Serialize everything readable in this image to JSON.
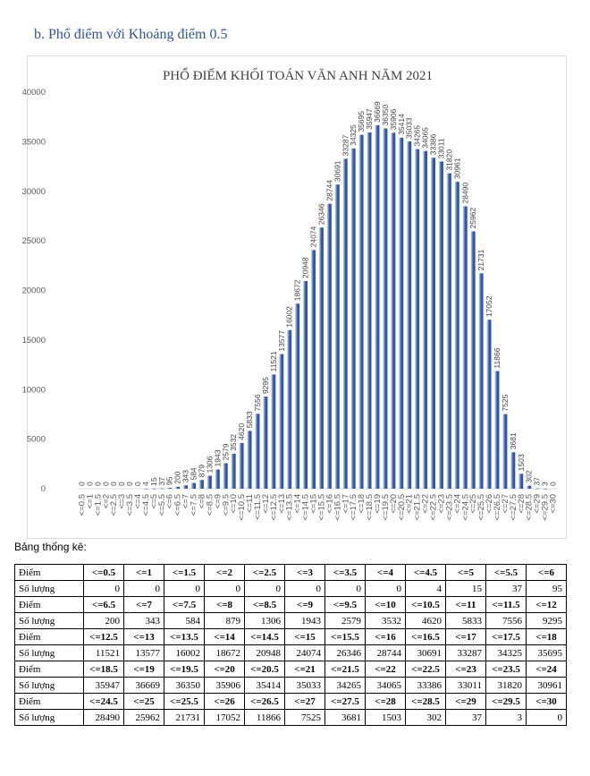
{
  "heading": "b.  Phổ điểm với Khoảng điểm 0.5",
  "table_caption": "Bảng thống kê:",
  "chart_data": {
    "type": "bar",
    "title": "PHỔ ĐIỂM KHỐI TOÁN VĂN ANH  NĂM 2021",
    "ylim": [
      0,
      40000
    ],
    "yticks": [
      0,
      5000,
      10000,
      15000,
      20000,
      25000,
      30000,
      35000,
      40000
    ],
    "categories": [
      "<=0.5",
      "<=1",
      "<=1.5",
      "<=2",
      "<=2.5",
      "<=3",
      "<=3.5",
      "<=4",
      "<=4.5",
      "<=5",
      "<=5.5",
      "<=6",
      "<=6.5",
      "<=7",
      "<=7.5",
      "<=8",
      "<=8.5",
      "<=9",
      "<=9.5",
      "<=10",
      "<=10.5",
      "<=11",
      "<=11.5",
      "<=12",
      "<=12.5",
      "<=13",
      "<=13.5",
      "<=14",
      "<=14.5",
      "<=15",
      "<=15.5",
      "<=16",
      "<=16.5",
      "<=17",
      "<=17.5",
      "<=18",
      "<=18.5",
      "<=19",
      "<=19.5",
      "<=20",
      "<=20.5",
      "<=21",
      "<=21.5",
      "<=22",
      "<=22.5",
      "<=23",
      "<=23.5",
      "<=24",
      "<=24.5",
      "<=25",
      "<=25.5",
      "<=26",
      "<=26.5",
      "<=27",
      "<=27.5",
      "<=28",
      "<=28.5",
      "<=29",
      "<=29.5",
      "<=30"
    ],
    "values": [
      0,
      0,
      0,
      0,
      0,
      0,
      0,
      0,
      4,
      15,
      37,
      95,
      200,
      343,
      584,
      879,
      1306,
      1943,
      2579,
      3532,
      4620,
      5833,
      7556,
      9295,
      11521,
      13577,
      16002,
      18672,
      20948,
      24074,
      26346,
      28744,
      30691,
      33287,
      34325,
      35695,
      35947,
      36669,
      36350,
      35906,
      35414,
      35033,
      34265,
      34065,
      33386,
      33011,
      31820,
      30961,
      28490,
      25962,
      21731,
      17052,
      11866,
      7525,
      3681,
      1503,
      302,
      37,
      3,
      0
    ],
    "xlabel": "",
    "ylabel": ""
  },
  "table": {
    "header_label": "Điểm",
    "count_label": "Số lượng",
    "rows": [
      {
        "scores": [
          "<=0.5",
          "<=1",
          "<=1.5",
          "<=2",
          "<=2.5",
          "<=3",
          "<=3.5",
          "<=4",
          "<=4.5",
          "<=5",
          "<=5.5",
          "<=6"
        ],
        "counts": [
          "0",
          "0",
          "0",
          "0",
          "0",
          "0",
          "0",
          "0",
          "4",
          "15",
          "37",
          "95"
        ]
      },
      {
        "scores": [
          "<=6.5",
          "<=7",
          "<=7.5",
          "<=8",
          "<=8.5",
          "<=9",
          "<=9.5",
          "<=10",
          "<=10.5",
          "<=11",
          "<=11.5",
          "<=12"
        ],
        "counts": [
          "200",
          "343",
          "584",
          "879",
          "1306",
          "1943",
          "2579",
          "3532",
          "4620",
          "5833",
          "7556",
          "9295"
        ]
      },
      {
        "scores": [
          "<=12.5",
          "<=13",
          "<=13.5",
          "<=14",
          "<=14.5",
          "<=15",
          "<=15.5",
          "<=16",
          "<=16.5",
          "<=17",
          "<=17.5",
          "<=18"
        ],
        "counts": [
          "11521",
          "13577",
          "16002",
          "18672",
          "20948",
          "24074",
          "26346",
          "28744",
          "30691",
          "33287",
          "34325",
          "35695"
        ]
      },
      {
        "scores": [
          "<=18.5",
          "<=19",
          "<=19.5",
          "<=20",
          "<=20.5",
          "<=21",
          "<=21.5",
          "<=22",
          "<=22.5",
          "<=23",
          "<=23.5",
          "<=24"
        ],
        "counts": [
          "35947",
          "36669",
          "36350",
          "35906",
          "35414",
          "35033",
          "34265",
          "34065",
          "33386",
          "33011",
          "31820",
          "30961"
        ]
      },
      {
        "scores": [
          "<=24.5",
          "<=25",
          "<=25.5",
          "<=26",
          "<=26.5",
          "<=27",
          "<=27.5",
          "<=28",
          "<=28.5",
          "<=29",
          "<=29.5",
          "<=30"
        ],
        "counts": [
          "28490",
          "25962",
          "21731",
          "17052",
          "11866",
          "7525",
          "3681",
          "1503",
          "302",
          "37",
          "3",
          "0"
        ]
      }
    ]
  },
  "colors": {
    "bar_light": "#c9d6ef",
    "bar_dark": "#2e55a8",
    "heading": "#2f5597"
  }
}
